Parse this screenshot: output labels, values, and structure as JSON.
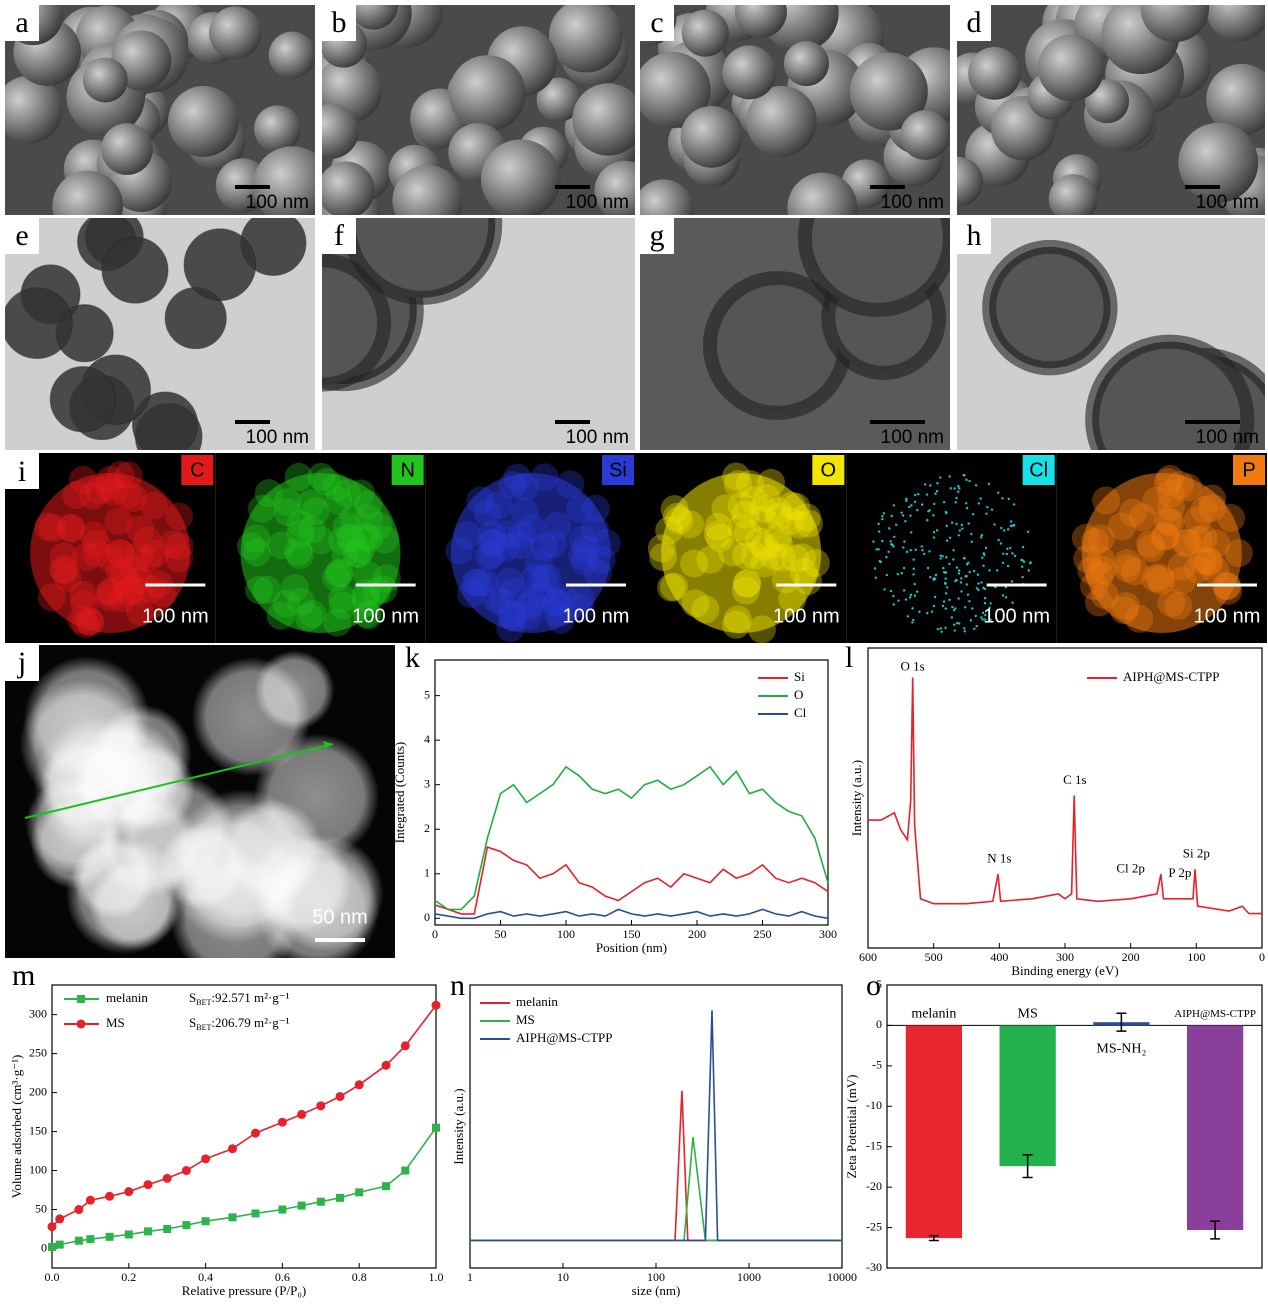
{
  "sem_tem": [
    {
      "letter": "a",
      "scale": "100 nm"
    },
    {
      "letter": "b",
      "scale": "100 nm"
    },
    {
      "letter": "c",
      "scale": "100 nm"
    },
    {
      "letter": "d",
      "scale": "100 nm"
    },
    {
      "letter": "e",
      "scale": "100 nm"
    },
    {
      "letter": "f",
      "scale": "100 nm"
    },
    {
      "letter": "g",
      "scale": "100 nm"
    },
    {
      "letter": "h",
      "scale": "100 nm"
    }
  ],
  "eds": {
    "letter": "i",
    "maps": [
      {
        "element": "C",
        "color": "#e31a1c",
        "scale": "100 nm"
      },
      {
        "element": "N",
        "color": "#22c41e",
        "scale": "100 nm"
      },
      {
        "element": "Si",
        "color": "#2a3bd6",
        "scale": "100 nm"
      },
      {
        "element": "O",
        "color": "#f2e600",
        "scale": "100 nm"
      },
      {
        "element": "Cl",
        "color": "#19dfe6",
        "scale": "100 nm"
      },
      {
        "element": "P",
        "color": "#f07a10",
        "scale": "100 nm"
      }
    ]
  },
  "haadf": {
    "letter": "j",
    "scale": "50 nm"
  },
  "chart_data": [
    {
      "type": "line",
      "panel": "k",
      "xlabel": "Position (nm)",
      "ylabel": "Integrated (Counts)",
      "legend": "upper right",
      "x": [
        0,
        10,
        20,
        30,
        40,
        50,
        60,
        70,
        80,
        90,
        100,
        110,
        120,
        130,
        140,
        150,
        160,
        170,
        180,
        190,
        200,
        210,
        220,
        230,
        240,
        250,
        260,
        270,
        280,
        290,
        300
      ],
      "series": [
        {
          "name": "Si",
          "color": "#e8202a",
          "values": [
            0.3,
            0.2,
            0.1,
            0.1,
            1.6,
            1.5,
            1.3,
            1.2,
            0.9,
            1.0,
            1.2,
            0.8,
            0.7,
            0.5,
            0.4,
            0.6,
            0.8,
            0.9,
            0.7,
            1.0,
            0.9,
            0.8,
            1.1,
            0.9,
            1.0,
            1.2,
            0.9,
            0.8,
            0.9,
            0.8,
            0.6
          ]
        },
        {
          "name": "O",
          "color": "#1fae3e",
          "values": [
            0.4,
            0.2,
            0.2,
            0.5,
            1.8,
            2.8,
            3.0,
            2.6,
            2.8,
            3.0,
            3.4,
            3.2,
            2.9,
            2.8,
            2.9,
            2.7,
            3.0,
            3.1,
            2.9,
            3.0,
            3.2,
            3.4,
            3.0,
            3.3,
            2.8,
            2.9,
            2.6,
            2.4,
            2.3,
            1.8,
            0.8
          ]
        },
        {
          "name": "Cl",
          "color": "#2b4c9b",
          "values": [
            0.1,
            0.05,
            0,
            0,
            0.1,
            0.15,
            0.05,
            0.1,
            0.05,
            0.1,
            0.15,
            0.05,
            0.1,
            0.05,
            0.2,
            0.1,
            0.05,
            0.1,
            0.05,
            0.1,
            0.15,
            0.05,
            0.1,
            0.05,
            0.1,
            0.2,
            0.1,
            0.05,
            0.15,
            0.05,
            0
          ]
        }
      ],
      "xlim": [
        0,
        300
      ],
      "xticks": [
        0,
        50,
        100,
        150,
        200,
        250,
        300
      ],
      "ylim": [
        -0.15,
        5.8
      ],
      "yticks": [
        0,
        1,
        2,
        3,
        4,
        5
      ]
    },
    {
      "type": "line",
      "panel": "l",
      "xlabel": "Binding energy (eV)",
      "ylabel": "Intensity (a.u.)",
      "legend": "upper right",
      "series": [
        {
          "name": "AIPH@MS-CTPP",
          "color": "#e8202a",
          "x": [
            600,
            580,
            560,
            550,
            540,
            535,
            532,
            529,
            520,
            500,
            450,
            410,
            402,
            398,
            350,
            310,
            300,
            290,
            286,
            282,
            250,
            200,
            160,
            154,
            150,
            135,
            133,
            105,
            102,
            98,
            50,
            30,
            20,
            0
          ],
          "values": [
            0.42,
            0.42,
            0.45,
            0.38,
            0.34,
            0.5,
            1.0,
            0.4,
            0.1,
            0.08,
            0.08,
            0.09,
            0.2,
            0.09,
            0.1,
            0.12,
            0.1,
            0.12,
            0.52,
            0.1,
            0.09,
            0.1,
            0.12,
            0.2,
            0.1,
            0.1,
            0.1,
            0.1,
            0.22,
            0.07,
            0.05,
            0.07,
            0.04,
            0.04
          ]
        }
      ],
      "annotations": [
        {
          "text": "O 1s",
          "x": 532,
          "y": 1.04
        },
        {
          "text": "N 1s",
          "x": 400,
          "y": 0.26
        },
        {
          "text": "C 1s",
          "x": 285,
          "y": 0.58
        },
        {
          "text": "Cl 2p",
          "x": 200,
          "y": 0.22
        },
        {
          "text": "P 2p",
          "x": 125,
          "y": 0.2
        },
        {
          "text": "Si 2p",
          "x": 100,
          "y": 0.28
        }
      ],
      "xlim": [
        600,
        0
      ],
      "xticks": [
        600,
        500,
        400,
        300,
        200,
        100,
        0
      ],
      "ylim": [
        -0.1,
        1.12
      ]
    },
    {
      "type": "scatter-line",
      "panel": "m",
      "xlabel": "Relative pressure (P/P₀)",
      "ylabel": "Volume adsorbed (cm³·g⁻¹)",
      "legend": "upper left",
      "series": [
        {
          "name": "melanin",
          "color": "#2db34a",
          "marker": "square",
          "x": [
            0,
            0.02,
            0.07,
            0.1,
            0.15,
            0.2,
            0.25,
            0.3,
            0.35,
            0.4,
            0.47,
            0.53,
            0.6,
            0.65,
            0.7,
            0.75,
            0.8,
            0.87,
            0.92,
            1.0
          ],
          "values": [
            2,
            5,
            10,
            12,
            15,
            18,
            22,
            25,
            30,
            35,
            40,
            45,
            50,
            55,
            60,
            65,
            72,
            80,
            100,
            155
          ]
        },
        {
          "name": "MS",
          "color": "#e8202a",
          "marker": "circle",
          "x": [
            0,
            0.02,
            0.07,
            0.1,
            0.15,
            0.2,
            0.25,
            0.3,
            0.35,
            0.4,
            0.47,
            0.53,
            0.6,
            0.65,
            0.7,
            0.75,
            0.8,
            0.87,
            0.92,
            1.0
          ],
          "values": [
            28,
            38,
            50,
            62,
            67,
            73,
            82,
            90,
            100,
            115,
            128,
            148,
            162,
            172,
            183,
            195,
            210,
            235,
            260,
            312
          ]
        }
      ],
      "annotations": [
        {
          "main": "S",
          "sub": "BET",
          "rest": ":92.571 m²·g⁻¹"
        },
        {
          "main": "S",
          "sub": "BET",
          "rest": ":206.79 m²·g⁻¹"
        }
      ],
      "xlim": [
        0,
        1
      ],
      "xticks": [
        {
          "value": 0,
          "label": "0.0"
        },
        0.2,
        0.4,
        0.6,
        0.8,
        {
          "value": 1,
          "label": "1.0"
        }
      ],
      "ylim": [
        -25,
        338
      ],
      "yticks": [
        0,
        50,
        100,
        150,
        200,
        250,
        300
      ]
    },
    {
      "type": "line",
      "panel": "n",
      "xlabel": "size (nm)",
      "ylabel": "Intensity (a.u.)",
      "legend": "upper left",
      "xscale": "log",
      "series": [
        {
          "name": "melanin",
          "color": "#e8202a",
          "x": [
            1,
            160,
            190,
            220,
            10000
          ],
          "values": [
            0,
            0,
            0.65,
            0,
            0
          ]
        },
        {
          "name": "MS",
          "color": "#2db34a",
          "x": [
            1,
            200,
            250,
            340,
            10000
          ],
          "values": [
            0,
            0,
            0.45,
            0,
            0
          ]
        },
        {
          "name": "AIPH@MS-CTPP",
          "color": "#2b4c9b",
          "x": [
            1,
            340,
            400,
            460,
            10000
          ],
          "values": [
            0,
            0,
            1,
            0,
            0
          ]
        }
      ],
      "xlim": [
        1,
        10000
      ],
      "xticks": [
        1,
        10,
        100,
        1000,
        10000
      ],
      "ylim": [
        -0.12,
        1.11
      ]
    },
    {
      "type": "bar",
      "panel": "o",
      "ylabel": "Zeta Potential (mV)",
      "categories": [
        "melanin",
        "MS",
        "MS-NH₂",
        "AIPH@MS-CTPP"
      ],
      "values": [
        -26.3,
        -17.4,
        0.4,
        -25.3
      ],
      "errors": [
        0.3,
        1.4,
        1.1,
        1.1
      ],
      "colors": [
        "#e8262e",
        "#22b14c",
        "#2b4c9b",
        "#8a3f9a"
      ],
      "ylim": [
        -30,
        5
      ],
      "yticks": [
        -30,
        -25,
        -20,
        -15,
        -10,
        -5,
        0,
        5
      ]
    }
  ]
}
